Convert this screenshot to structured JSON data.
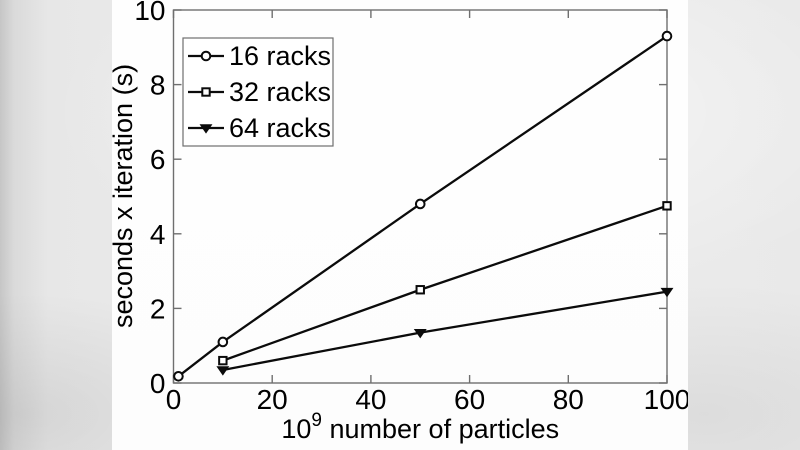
{
  "chart_data": {
    "type": "line",
    "title": "",
    "xlabel_base": "10",
    "xlabel_sup": "9",
    "xlabel_rest": " number of particles",
    "ylabel": "seconds x iteration (s)",
    "xlim": [
      0,
      100
    ],
    "ylim": [
      0,
      10
    ],
    "x_ticks": [
      0,
      20,
      40,
      60,
      80,
      100
    ],
    "y_ticks": [
      0,
      2,
      4,
      6,
      8,
      10
    ],
    "grid": false,
    "legend": {
      "position": "top-left"
    },
    "series": [
      {
        "name": "16 racks",
        "marker": "circle",
        "points": [
          [
            1,
            0.18
          ],
          [
            10,
            1.1
          ],
          [
            50,
            4.8
          ],
          [
            100,
            9.3
          ]
        ]
      },
      {
        "name": "32 racks",
        "marker": "square",
        "points": [
          [
            10,
            0.6
          ],
          [
            50,
            2.5
          ],
          [
            100,
            4.75
          ]
        ]
      },
      {
        "name": "64 racks",
        "marker": "triangle-down",
        "points": [
          [
            10,
            0.35
          ],
          [
            50,
            1.35
          ],
          [
            100,
            2.45
          ]
        ]
      }
    ]
  },
  "colors": {
    "data_line": "#0b0b0b",
    "axis": "#6f6f6f",
    "text": "#000000",
    "legend_border": "#6f6f6f",
    "marker_face": "#ffffff"
  }
}
